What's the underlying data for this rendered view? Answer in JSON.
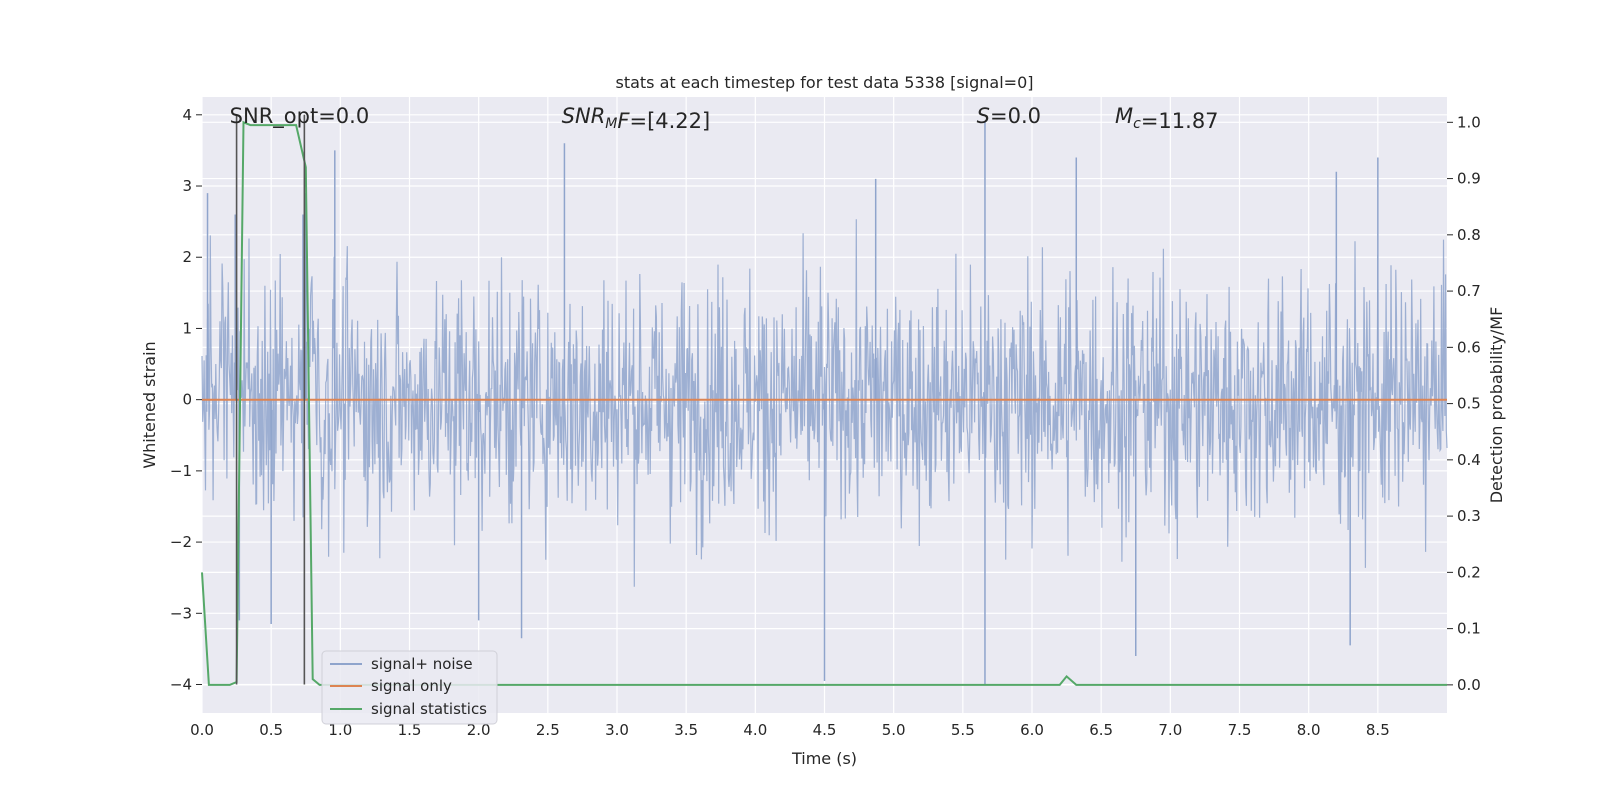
{
  "chart_data": {
    "type": "line",
    "title": "stats at each timestep for test data 5338 [signal=0]",
    "xlabel": "Time (s)",
    "ylabel": "Whitened strain",
    "y2label": "Detection probability/MF",
    "xlim": [
      0.0,
      9.0
    ],
    "ylim": [
      -4.4,
      4.25
    ],
    "y2lim": [
      -0.05,
      1.045
    ],
    "x_ticks": [
      0.0,
      0.5,
      1.0,
      1.5,
      2.0,
      2.5,
      3.0,
      3.5,
      4.0,
      4.5,
      5.0,
      5.5,
      6.0,
      6.5,
      7.0,
      7.5,
      8.0,
      8.5
    ],
    "x_tick_labels": [
      "0.0",
      "0.5",
      "1.0",
      "1.5",
      "2.0",
      "2.5",
      "3.0",
      "3.5",
      "4.0",
      "4.5",
      "5.0",
      "5.5",
      "6.0",
      "6.5",
      "7.0",
      "7.5",
      "8.0",
      "8.5"
    ],
    "y_ticks": [
      -4,
      -3,
      -2,
      -1,
      0,
      1,
      2,
      3,
      4
    ],
    "y_tick_labels": [
      "−4",
      "−3",
      "−2",
      "−1",
      "0",
      "1",
      "2",
      "3",
      "4"
    ],
    "y2_ticks": [
      0.0,
      0.1,
      0.2,
      0.3,
      0.4,
      0.5,
      0.6,
      0.7,
      0.8,
      0.9,
      1.0
    ],
    "y2_tick_labels": [
      "0.0",
      "0.1",
      "0.2",
      "0.3",
      "0.4",
      "0.5",
      "0.6",
      "0.7",
      "0.8",
      "0.9",
      "1.0"
    ],
    "grid": true,
    "legend_position": "lower-left",
    "series": [
      {
        "name": "signal+ noise",
        "axis": "left",
        "color": "#8fa4cc",
        "noise_std": 0.85,
        "x_step": 0.005,
        "spikes": [
          {
            "x": 0.04,
            "y": 2.9
          },
          {
            "x": 0.24,
            "y": 2.6
          },
          {
            "x": 0.27,
            "y": -3.1
          },
          {
            "x": 0.5,
            "y": -3.15
          },
          {
            "x": 0.73,
            "y": 2.6
          },
          {
            "x": 0.75,
            "y": 2.9
          },
          {
            "x": 0.96,
            "y": 3.5
          },
          {
            "x": 2.0,
            "y": -3.1
          },
          {
            "x": 2.31,
            "y": -3.35
          },
          {
            "x": 2.62,
            "y": 3.6
          },
          {
            "x": 4.5,
            "y": -3.95
          },
          {
            "x": 4.87,
            "y": 3.1
          },
          {
            "x": 5.66,
            "y": 3.9
          },
          {
            "x": 5.66,
            "y": -4.0
          },
          {
            "x": 6.32,
            "y": 3.4
          },
          {
            "x": 6.75,
            "y": -3.6
          },
          {
            "x": 8.2,
            "y": 3.2
          },
          {
            "x": 8.3,
            "y": -3.45
          },
          {
            "x": 8.5,
            "y": 3.4
          }
        ]
      },
      {
        "name": "signal only",
        "axis": "left",
        "color": "#dd8452",
        "x": [
          0.0,
          9.0
        ],
        "y": [
          0.0,
          0.0
        ]
      },
      {
        "name": "signal statistics",
        "axis": "right",
        "color": "#55a868",
        "x": [
          0.0,
          0.05,
          0.2,
          0.25,
          0.3,
          0.35,
          0.68,
          0.75,
          0.8,
          0.85,
          6.2,
          6.25,
          6.32,
          6.4,
          9.0
        ],
        "y": [
          0.2,
          0.0,
          0.0,
          0.005,
          1.0,
          0.995,
          0.995,
          0.92,
          0.01,
          0.0,
          0.0,
          0.015,
          0.0,
          0.0,
          0.0
        ]
      }
    ],
    "vlines": [
      {
        "x": 0.25,
        "y_from": -4.0,
        "y_to": 4.0,
        "color": "#555555"
      },
      {
        "x": 0.74,
        "y_from": -4.0,
        "y_to": 4.0,
        "color": "#555555"
      }
    ],
    "annotations": [
      {
        "id": "snr_opt",
        "x": 0.2,
        "y": 4.0,
        "parts": [
          {
            "text": "SNR_opt=0.0",
            "style": "normal"
          }
        ]
      },
      {
        "id": "snr_mf",
        "x": 2.6,
        "y": 4.0,
        "parts": [
          {
            "text": "SNR",
            "style": "italic"
          },
          {
            "text": "M",
            "style": "italic-sub"
          },
          {
            "text": "F",
            "style": "italic"
          },
          {
            "text": "=[4.22]",
            "style": "normal"
          }
        ]
      },
      {
        "id": "s",
        "x": 5.6,
        "y": 4.0,
        "parts": [
          {
            "text": "S",
            "style": "italic"
          },
          {
            "text": "=0.0",
            "style": "normal"
          }
        ]
      },
      {
        "id": "mc",
        "x": 6.6,
        "y": 4.0,
        "parts": [
          {
            "text": "M",
            "style": "italic"
          },
          {
            "text": "c",
            "style": "italic-sub"
          },
          {
            "text": "=11.87",
            "style": "normal"
          }
        ]
      }
    ],
    "background_color": "#eaeaf2",
    "grid_color": "#ffffff"
  }
}
